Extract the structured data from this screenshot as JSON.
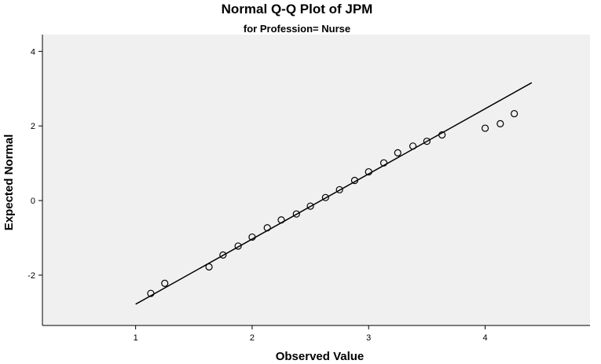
{
  "chart_data": {
    "type": "scatter",
    "title": "Normal Q-Q Plot of JPM",
    "subtitle": "for Profession= Nurse",
    "xlabel": "Observed Value",
    "ylabel": "Expected Normal",
    "xlim": [
      0.2,
      4.9
    ],
    "ylim": [
      -3.35,
      4.45
    ],
    "xticks": [
      1,
      2,
      3,
      4
    ],
    "yticks": [
      -2,
      0,
      2,
      4
    ],
    "grid": false,
    "colors": {
      "plot_background": "#f0f0f0",
      "points": "#000000",
      "line": "#000000"
    },
    "points": [
      {
        "x": 1.13,
        "y": -2.49
      },
      {
        "x": 1.25,
        "y": -2.22
      },
      {
        "x": 1.63,
        "y": -1.78
      },
      {
        "x": 1.75,
        "y": -1.46
      },
      {
        "x": 1.88,
        "y": -1.22
      },
      {
        "x": 2.0,
        "y": -0.98
      },
      {
        "x": 2.13,
        "y": -0.73
      },
      {
        "x": 2.25,
        "y": -0.52
      },
      {
        "x": 2.38,
        "y": -0.36
      },
      {
        "x": 2.5,
        "y": -0.15
      },
      {
        "x": 2.63,
        "y": 0.08
      },
      {
        "x": 2.75,
        "y": 0.29
      },
      {
        "x": 2.88,
        "y": 0.54
      },
      {
        "x": 3.0,
        "y": 0.77
      },
      {
        "x": 3.13,
        "y": 1.01
      },
      {
        "x": 3.25,
        "y": 1.28
      },
      {
        "x": 3.38,
        "y": 1.46
      },
      {
        "x": 3.5,
        "y": 1.59
      },
      {
        "x": 3.63,
        "y": 1.76
      },
      {
        "x": 4.0,
        "y": 1.94
      },
      {
        "x": 4.13,
        "y": 2.06
      },
      {
        "x": 4.25,
        "y": 2.33
      }
    ],
    "reference_line": {
      "x": [
        1.0,
        4.4
      ],
      "y": [
        -2.78,
        3.16
      ]
    }
  }
}
